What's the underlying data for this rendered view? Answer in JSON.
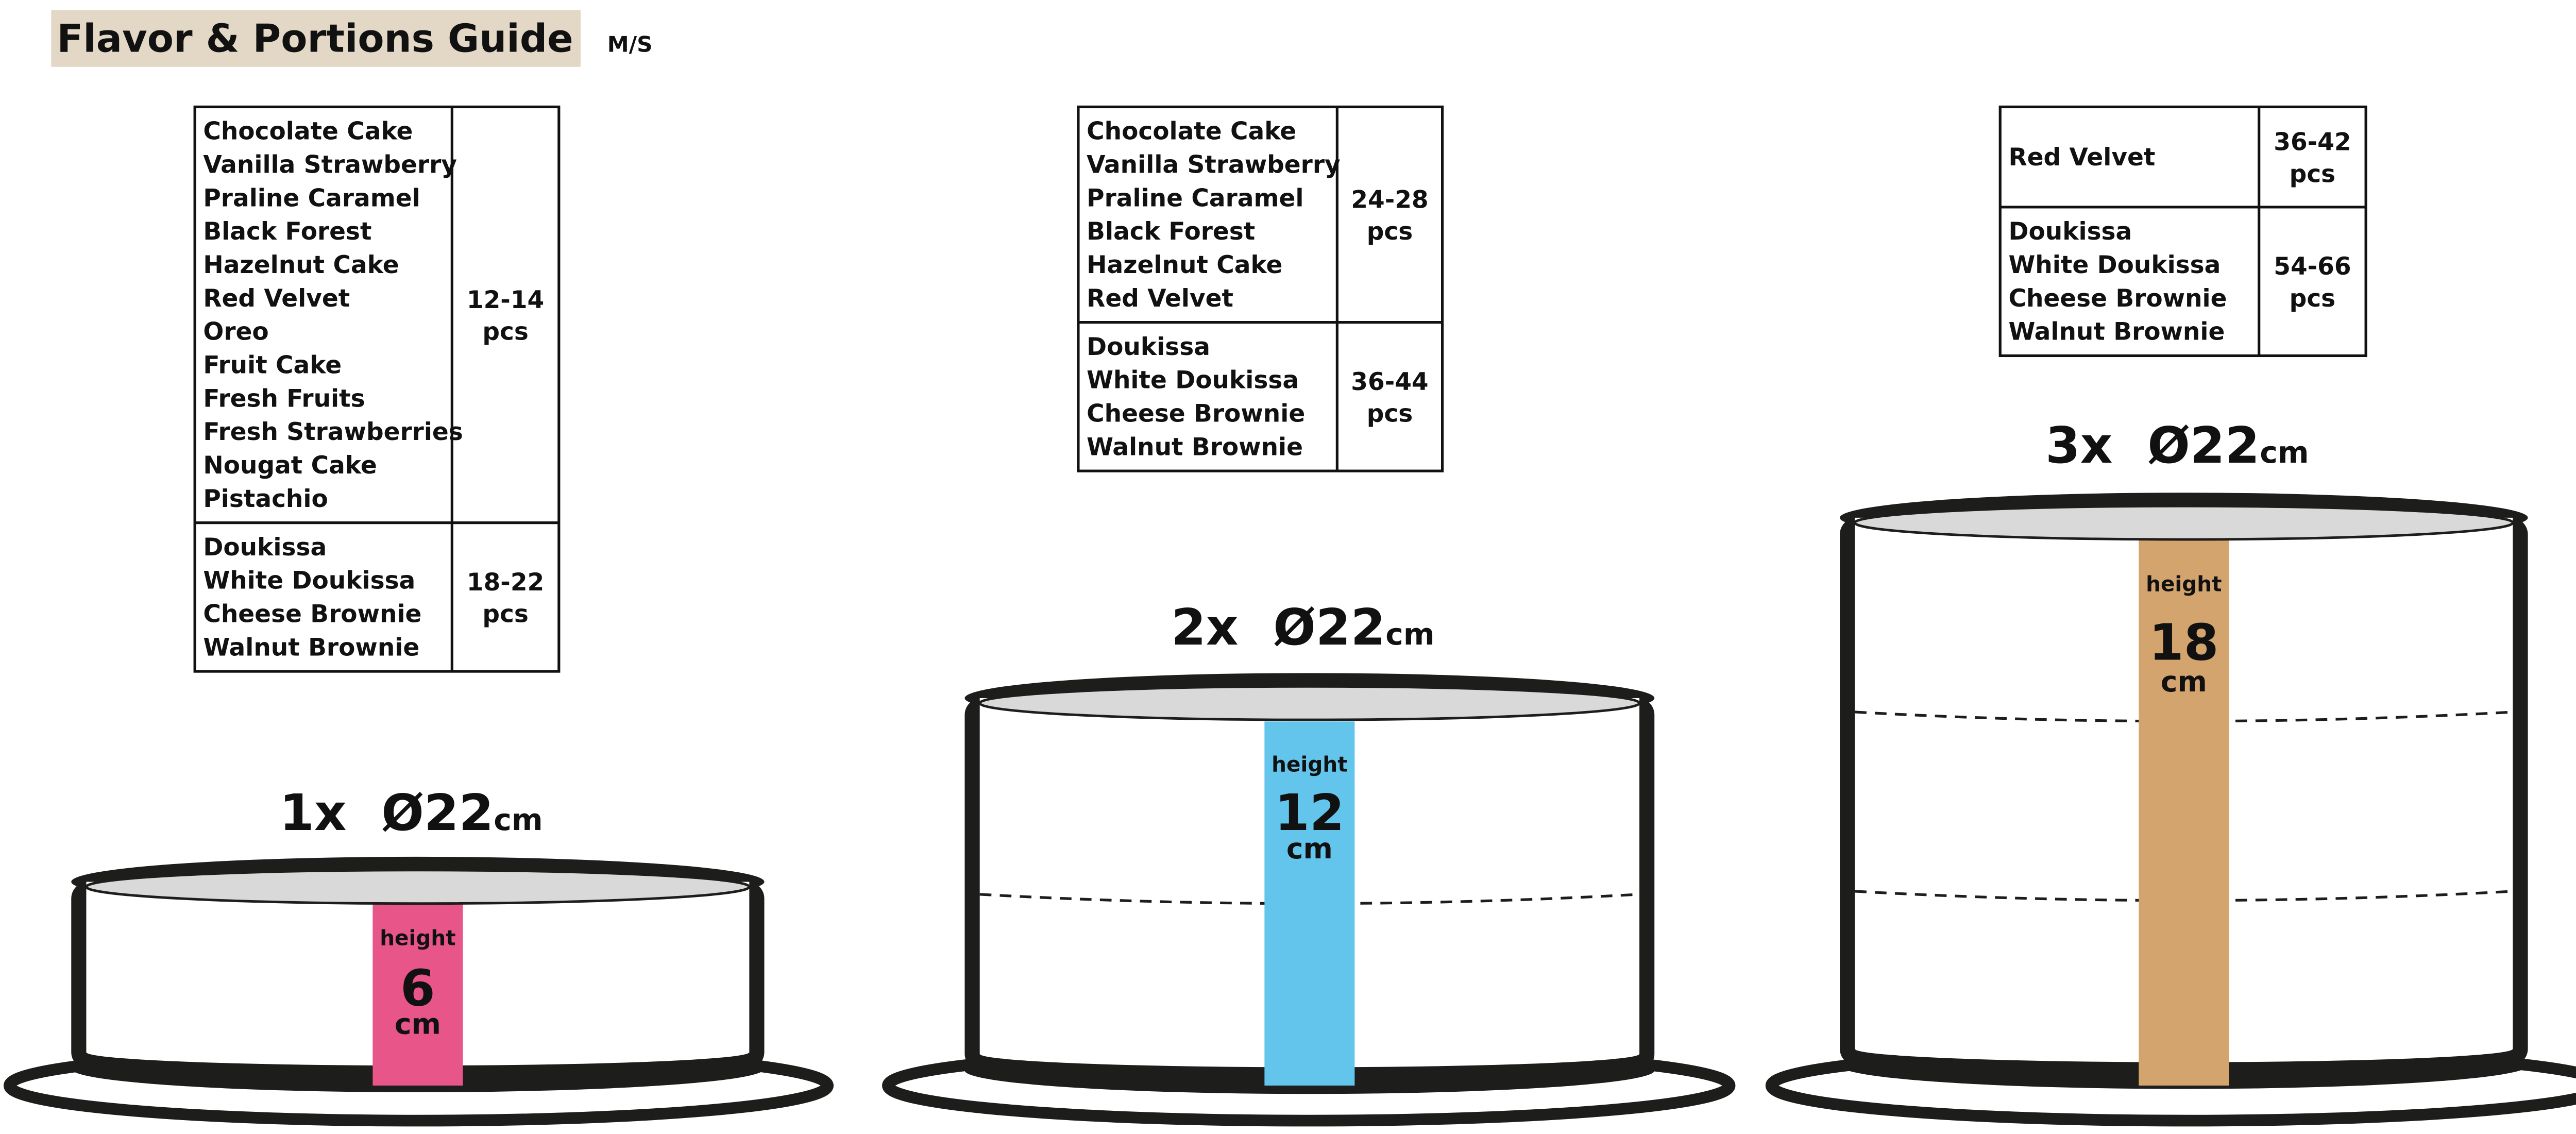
{
  "header": {
    "title": "Flavor & Portions Guide",
    "subtitle": "M/S",
    "title_bg": "#e3d7c5"
  },
  "tables": [
    {
      "groups": [
        {
          "flavors": [
            "Chocolate Cake",
            "Vanilla Strawberry",
            "Praline Caramel",
            "Black Forest",
            "Hazelnut Cake",
            "Red Velvet",
            "Oreo",
            "Fruit Cake",
            "Fresh Fruits",
            "Fresh Strawberries",
            "Nougat Cake",
            "Pistachio"
          ],
          "portions": "12-14",
          "unit": "pcs"
        },
        {
          "flavors": [
            "Doukissa",
            "White Doukissa",
            "Cheese Brownie",
            "Walnut Brownie"
          ],
          "portions": "18-22",
          "unit": "pcs"
        }
      ]
    },
    {
      "groups": [
        {
          "flavors": [
            "Chocolate Cake",
            "Vanilla Strawberry",
            "Praline Caramel",
            "Black Forest",
            "Hazelnut Cake",
            "Red Velvet"
          ],
          "portions": "24-28",
          "unit": "pcs"
        },
        {
          "flavors": [
            "Doukissa",
            "White Doukissa",
            "Cheese Brownie",
            "Walnut Brownie"
          ],
          "portions": "36-44",
          "unit": "pcs"
        }
      ]
    },
    {
      "groups": [
        {
          "flavors": [
            "Red Velvet"
          ],
          "portions": "36-42",
          "unit": "pcs"
        },
        {
          "flavors": [
            "Doukissa",
            "White Doukissa",
            "Cheese Brownie",
            "Walnut Brownie"
          ],
          "portions": "54-66",
          "unit": "pcs"
        }
      ]
    }
  ],
  "cakes": [
    {
      "label": "1x  Ø22",
      "label_unit": "cm",
      "height_label": "height",
      "height_value": "6",
      "height_unit": "cm",
      "layers": 1,
      "color": "#e75589"
    },
    {
      "label": "2x  Ø22",
      "label_unit": "cm",
      "height_label": "height",
      "height_value": "12",
      "height_unit": "cm",
      "layers": 2,
      "color": "#63c5ec"
    },
    {
      "label": "3x  Ø22",
      "label_unit": "cm",
      "height_label": "height",
      "height_value": "18",
      "height_unit": "cm",
      "layers": 3,
      "color": "#d4a46e"
    }
  ]
}
